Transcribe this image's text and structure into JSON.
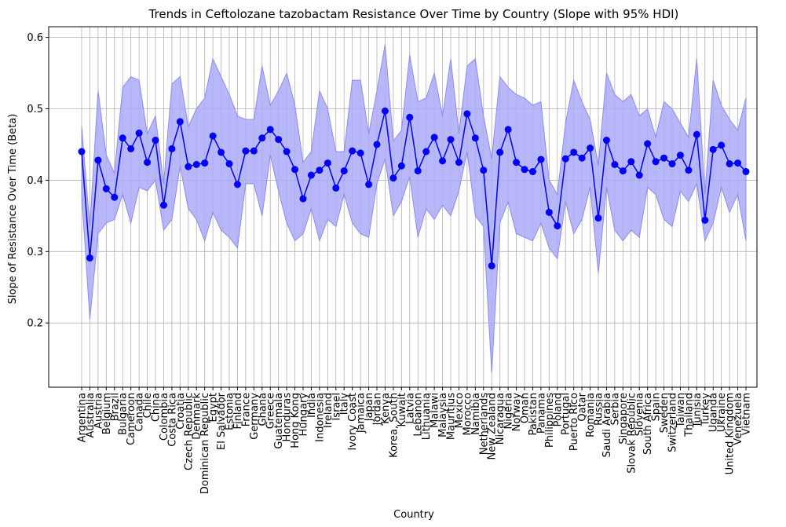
{
  "chart_data": {
    "type": "line",
    "title": "Trends in Ceftolozane tazobactam Resistance Over Time by Country (Slope with 95% HDI)",
    "xlabel": "Country",
    "ylabel": "Slope of Resistance Over Time (Beta)",
    "ylim": [
      0.11,
      0.615
    ],
    "yticks": [
      0.2,
      0.3,
      0.4,
      0.5,
      0.6
    ],
    "ytick_labels": [
      "0.2",
      "0.3",
      "0.4",
      "0.5",
      "0.6"
    ],
    "grid": true,
    "colors": {
      "line": "#0000ff",
      "band": "#aaaaf8",
      "band_edge": "#8c8cf0",
      "grid": "#b0b0b0"
    },
    "categories": [
      "Argentina",
      "Australia",
      "Austria",
      "Belgium",
      "Brazil",
      "Bulgaria",
      "Cameroon",
      "Canada",
      "Chile",
      "China",
      "Colombia",
      "Costa Rica",
      "Croatia",
      "Czech Republic",
      "Denmark",
      "Dominican Republic",
      "Egypt",
      "El Salvador",
      "Estonia",
      "Finland",
      "France",
      "Germany",
      "Ghana",
      "Greece",
      "Guatemala",
      "Honduras",
      "Hong Kong",
      "Hungary",
      "India",
      "Indonesia",
      "Ireland",
      "Israel",
      "Italy",
      "Ivory Coast",
      "Jamaica",
      "Japan",
      "Jordan",
      "Kenya",
      "Korea, South",
      "Kuwait",
      "Latvia",
      "Lebanon",
      "Lithuania",
      "Malawi",
      "Malaysia",
      "Mauritius",
      "Mexico",
      "Morocco",
      "Namibia",
      "Netherlands",
      "New Zealand",
      "Nicaragua",
      "Nigeria",
      "Norway",
      "Oman",
      "Pakistan",
      "Panama",
      "Philippines",
      "Poland",
      "Portugal",
      "Puerto Rico",
      "Qatar",
      "Romania",
      "Russia",
      "Saudi Arabia",
      "Serbia",
      "Singapore",
      "Slovak Republic",
      "Slovenia",
      "South Africa",
      "Spain",
      "Sweden",
      "Switzerland",
      "Taiwan",
      "Thailand",
      "Tunisia",
      "Turkey",
      "Uganda",
      "Ukraine",
      "United Kingdom",
      "Venezuela",
      "Vietnam"
    ],
    "series": [
      {
        "values": [
          0.44,
          0.291,
          0.428,
          0.388,
          0.376,
          0.459,
          0.444,
          0.466,
          0.425,
          0.456,
          0.365,
          0.444,
          0.482,
          0.419,
          0.422,
          0.424,
          0.462,
          0.439,
          0.423,
          0.394,
          0.441,
          0.441,
          0.459,
          0.471,
          0.457,
          0.44,
          0.415,
          0.374,
          0.407,
          0.414,
          0.424,
          0.389,
          0.413,
          0.441,
          0.438,
          0.394,
          0.45,
          0.497,
          0.403,
          0.42,
          0.488,
          0.413,
          0.44,
          0.46,
          0.427,
          0.457,
          0.425,
          0.493,
          0.459,
          0.414,
          0.28,
          0.439,
          0.471,
          0.425,
          0.415,
          0.412,
          0.429,
          0.355,
          0.336,
          0.43,
          0.439,
          0.431,
          0.445,
          0.347,
          0.456,
          0.422,
          0.413,
          0.426,
          0.407,
          0.451,
          0.426,
          0.431,
          0.423,
          0.435,
          0.414,
          0.464,
          0.344,
          0.443,
          0.449,
          0.423,
          0.424,
          0.412
        ],
        "hdi_lower": [
          0.38,
          0.205,
          0.325,
          0.34,
          0.345,
          0.38,
          0.34,
          0.39,
          0.385,
          0.4,
          0.33,
          0.345,
          0.42,
          0.36,
          0.345,
          0.315,
          0.355,
          0.33,
          0.32,
          0.305,
          0.395,
          0.395,
          0.35,
          0.435,
          0.385,
          0.34,
          0.315,
          0.325,
          0.36,
          0.315,
          0.345,
          0.335,
          0.38,
          0.34,
          0.325,
          0.32,
          0.395,
          0.43,
          0.35,
          0.37,
          0.405,
          0.32,
          0.36,
          0.345,
          0.365,
          0.35,
          0.385,
          0.44,
          0.35,
          0.335,
          0.13,
          0.34,
          0.37,
          0.325,
          0.32,
          0.315,
          0.34,
          0.305,
          0.29,
          0.37,
          0.325,
          0.345,
          0.39,
          0.27,
          0.39,
          0.33,
          0.315,
          0.33,
          0.32,
          0.39,
          0.38,
          0.345,
          0.335,
          0.385,
          0.37,
          0.395,
          0.315,
          0.34,
          0.39,
          0.355,
          0.38,
          0.315
        ],
        "hdi_upper": [
          0.475,
          0.335,
          0.525,
          0.435,
          0.41,
          0.53,
          0.545,
          0.54,
          0.465,
          0.49,
          0.395,
          0.535,
          0.545,
          0.475,
          0.5,
          0.515,
          0.57,
          0.545,
          0.52,
          0.49,
          0.485,
          0.485,
          0.56,
          0.505,
          0.525,
          0.55,
          0.505,
          0.425,
          0.44,
          0.525,
          0.5,
          0.44,
          0.44,
          0.54,
          0.54,
          0.465,
          0.525,
          0.59,
          0.455,
          0.47,
          0.575,
          0.51,
          0.515,
          0.55,
          0.49,
          0.57,
          0.465,
          0.56,
          0.57,
          0.49,
          0.43,
          0.545,
          0.53,
          0.52,
          0.515,
          0.505,
          0.51,
          0.4,
          0.38,
          0.48,
          0.54,
          0.51,
          0.485,
          0.42,
          0.55,
          0.52,
          0.51,
          0.52,
          0.49,
          0.5,
          0.46,
          0.51,
          0.5,
          0.48,
          0.46,
          0.57,
          0.38,
          0.54,
          0.505,
          0.485,
          0.47,
          0.515
        ]
      }
    ]
  }
}
